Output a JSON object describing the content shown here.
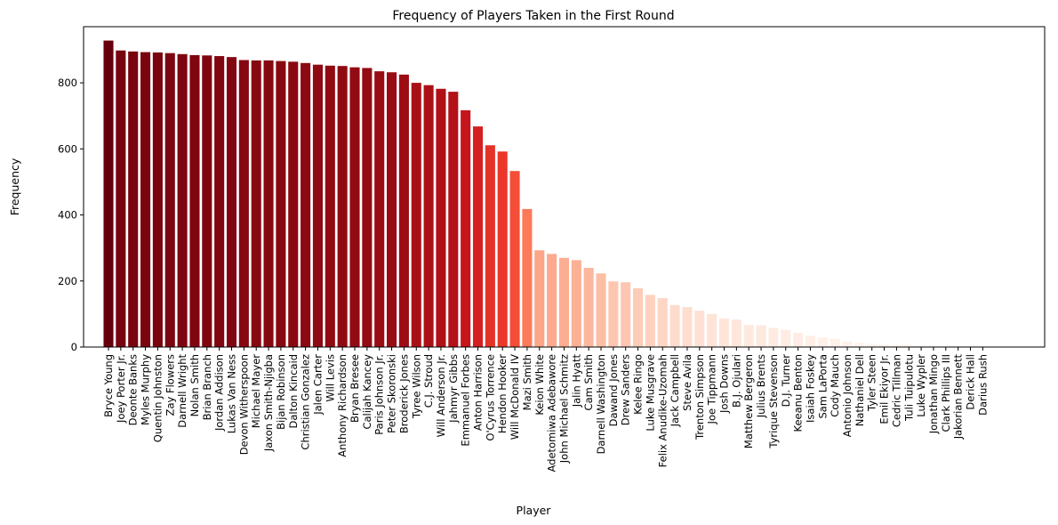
{
  "chart_data": {
    "type": "bar",
    "title": "Frequency of Players Taken in the First Round",
    "xlabel": "Player",
    "ylabel": "Frequency",
    "ylim": [
      0,
      970
    ],
    "yticks": [
      0,
      200,
      400,
      600,
      800
    ],
    "grid": false,
    "legend": "none",
    "colormap": "Reds",
    "categories": [
      "Bryce Young",
      "Joey Porter Jr.",
      "Deonte Banks",
      "Myles Murphy",
      "Quentin Johnston",
      "Zay Flowers",
      "Darnell Wright",
      "Nolan Smith",
      "Brian Branch",
      "Jordan Addison",
      "Lukas Van Ness",
      "Devon Witherspoon",
      "Michael Mayer",
      "Jaxon Smith-Njigba",
      "Bijan Robinson",
      "Dalton Kincaid",
      "Christian Gonzalez",
      "Jalen Carter",
      "Will Levis",
      "Anthony Richardson",
      "Bryan Bresee",
      "Calijah Kancey",
      "Paris Johnson Jr.",
      "Peter Skoronski",
      "Broderick Jones",
      "Tyree Wilson",
      "C.J. Stroud",
      "Will Anderson Jr.",
      "Jahmyr Gibbs",
      "Emmanuel Forbes",
      "Anton Harrison",
      "O'Cyrus Torrence",
      "Hendon Hooker",
      "Will McDonald IV",
      "Mazi Smith",
      "Keion White",
      "Adetomiwa Adebawore",
      "John Michael Schmitz",
      "Jalin Hyatt",
      "Cam Smith",
      "Darnell Washington",
      "Dawand Jones",
      "Drew Sanders",
      "Kelee Ringo",
      "Luke Musgrave",
      "Felix Anudike-Uzomah",
      "Jack Campbell",
      "Steve Avila",
      "Trenton Simpson",
      "Joe Tippmann",
      "Josh Downs",
      "B.J. Ojulari",
      "Matthew Bergeron",
      "Julius Brents",
      "Tyrique Stevenson",
      "D.J. Turner",
      "Keeanu Benton",
      "Isaiah Foskey",
      "Sam LaPorta",
      "Cody Mauch",
      "Antonio Johnson",
      "Nathaniel Dell",
      "Tyler Steen",
      "Emil Ekiyor Jr.",
      "Cedric Tillman",
      "Tuli Tuipulotu",
      "Luke Wypler",
      "Jonathan Mingo",
      "Clark Phillips III",
      "Jakorian Bennett",
      "Derick Hall",
      "Darius Rush"
    ],
    "values": [
      928,
      898,
      895,
      893,
      892,
      890,
      887,
      884,
      883,
      881,
      878,
      869,
      868,
      868,
      866,
      864,
      860,
      855,
      852,
      851,
      847,
      845,
      835,
      832,
      825,
      800,
      793,
      782,
      773,
      717,
      668,
      611,
      592,
      533,
      418,
      293,
      282,
      270,
      263,
      240,
      223,
      199,
      196,
      178,
      158,
      148,
      127,
      121,
      110,
      100,
      86,
      83,
      67,
      66,
      58,
      52,
      43,
      34,
      29,
      25,
      17,
      13,
      10,
      7,
      6,
      5,
      4,
      3,
      2,
      2,
      1,
      1
    ]
  }
}
